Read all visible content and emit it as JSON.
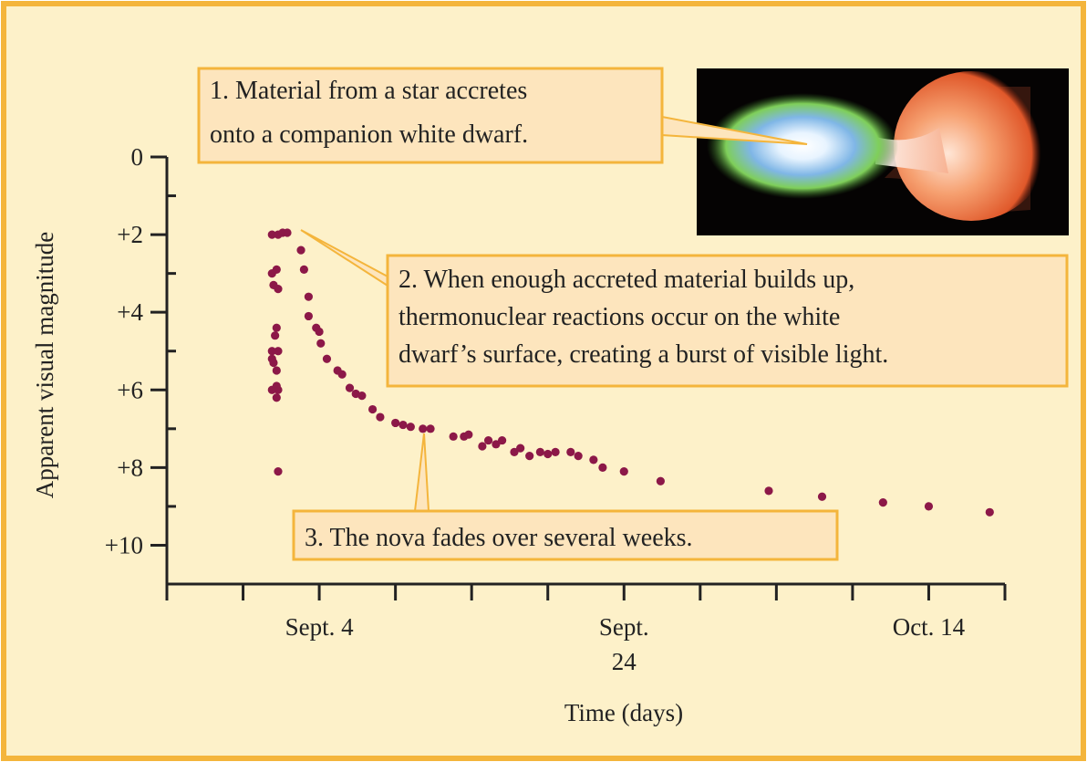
{
  "chart_data": {
    "type": "scatter",
    "x_label": "Time (days)",
    "y_label": "Apparent visual magnitude",
    "y_inverted": true,
    "color": "#8c1848",
    "xlim": [
      -6,
      49
    ],
    "xticks": [
      {
        "value": 4,
        "label": "Sept. 4"
      },
      {
        "value": 24,
        "label": "Sept. 24"
      },
      {
        "value": 44,
        "label": "Oct. 14"
      }
    ],
    "xminorticks": [
      -6,
      -1,
      9,
      14,
      19,
      29,
      34,
      39,
      49
    ],
    "ylim": [
      0,
      11
    ],
    "yticks": [
      0,
      {
        "value": 2,
        "label": "+2"
      },
      {
        "value": 4,
        "label": "+4"
      },
      {
        "value": 6,
        "label": "+6"
      },
      {
        "value": 8,
        "label": "+8"
      },
      {
        "value": 10,
        "label": "+10"
      }
    ],
    "yminorticks": [
      1,
      3,
      5,
      7,
      9
    ],
    "x": [
      0.9,
      1.3,
      1.6,
      1.9,
      2.8,
      3.0,
      3.3,
      3.3,
      3.8,
      4.0,
      4.1,
      4.5,
      5.2,
      5.5,
      6.0,
      6.4,
      6.8,
      7.5,
      8.0,
      9.0,
      9.5,
      10.0,
      10.8,
      11.3,
      12.8,
      13.5,
      13.8,
      14.7,
      15.1,
      15.6,
      16.0,
      16.8,
      17.2,
      17.8,
      18.5,
      19.0,
      19.5,
      20.5,
      21.0,
      22.0,
      22.6,
      24.0,
      26.4,
      33.5,
      37.0,
      41.0,
      44.0,
      48.0,
      0.9,
      1.2,
      1.0,
      1.3,
      1.2,
      1.1,
      0.9,
      1.3,
      1.0,
      1.2,
      0.9,
      1.2,
      1.3,
      0.9,
      1.2,
      1.3
    ],
    "values": [
      2.0,
      2.0,
      1.95,
      1.95,
      2.4,
      2.9,
      3.6,
      4.1,
      4.4,
      4.5,
      4.8,
      5.2,
      5.5,
      5.6,
      5.95,
      6.1,
      6.15,
      6.5,
      6.7,
      6.85,
      6.9,
      6.95,
      7.0,
      7.0,
      7.2,
      7.2,
      7.15,
      7.45,
      7.3,
      7.4,
      7.3,
      7.6,
      7.5,
      7.7,
      7.6,
      7.65,
      7.6,
      7.6,
      7.7,
      7.8,
      8.0,
      8.1,
      8.35,
      8.6,
      8.75,
      8.9,
      9.0,
      9.15,
      3.0,
      2.9,
      3.3,
      3.4,
      4.4,
      4.6,
      5.0,
      5.0,
      5.3,
      5.5,
      5.2,
      5.9,
      6.0,
      6.0,
      6.2,
      8.1
    ],
    "annotations": [
      {
        "lines": [
          "1. Material from a star accretes",
          "onto a companion white dwarf."
        ]
      },
      {
        "lines": [
          "2. When enough accreted material builds up,",
          "thermonuclear reactions occur on the white",
          "dwarf’s surface, creating a burst of visible light."
        ]
      },
      {
        "lines": [
          "3. The nova fades over several weeks."
        ]
      }
    ]
  }
}
